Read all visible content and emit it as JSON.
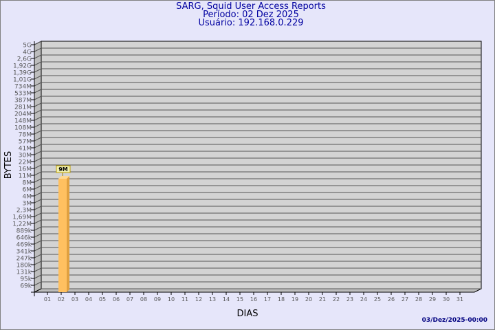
{
  "header": {
    "title": "SARG, Squid User Access Reports",
    "period": "Período: 02 Dez 2025",
    "user": "Usuário: 192.168.0.229"
  },
  "footer": {
    "timestamp": "03/Dez/2025-00:00"
  },
  "chart_data": {
    "type": "bar",
    "xlabel": "DIAS",
    "ylabel": "BYTES",
    "y_scale": "log",
    "y_ticks": [
      "5G",
      "4G",
      "2,6G",
      "1,92G",
      "1,39G",
      "1,01G",
      "734M",
      "533M",
      "387M",
      "281M",
      "204M",
      "148M",
      "108M",
      "78M",
      "57M",
      "41M",
      "30M",
      "22M",
      "16M",
      "11M",
      "8M",
      "6M",
      "4M",
      "3M",
      "2,3M",
      "1,69M",
      "1,22M",
      "889k",
      "646k",
      "469k",
      "341k",
      "247k",
      "180k",
      "131k",
      "95k",
      "69k"
    ],
    "categories": [
      "01",
      "02",
      "03",
      "04",
      "05",
      "06",
      "07",
      "08",
      "09",
      "10",
      "11",
      "12",
      "13",
      "14",
      "15",
      "16",
      "17",
      "18",
      "19",
      "20",
      "21",
      "22",
      "23",
      "24",
      "25",
      "26",
      "27",
      "28",
      "29",
      "30",
      "31"
    ],
    "values": [
      null,
      "9M",
      null,
      null,
      null,
      null,
      null,
      null,
      null,
      null,
      null,
      null,
      null,
      null,
      null,
      null,
      null,
      null,
      null,
      null,
      null,
      null,
      null,
      null,
      null,
      null,
      null,
      null,
      null,
      null,
      null
    ],
    "grid": true,
    "colors": {
      "bar": "#ffc060",
      "bar_side": "#e0a040",
      "plot_bg": "#d3d3d3",
      "label_bg": "#f0f0b0"
    }
  }
}
